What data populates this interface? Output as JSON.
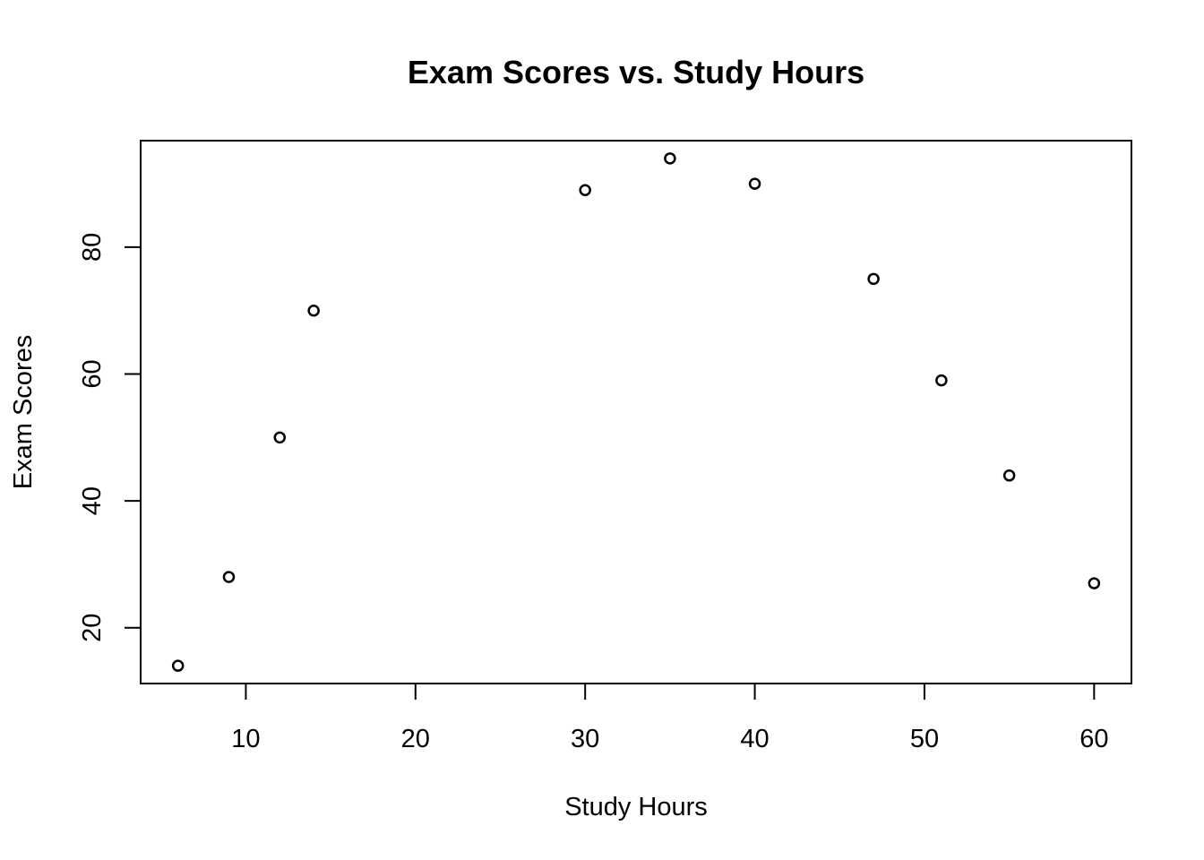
{
  "chart_data": {
    "type": "scatter",
    "title": "Exam Scores vs. Study Hours",
    "xlabel": "Study Hours",
    "ylabel": "Exam Scores",
    "xlim": [
      3.8,
      62.2
    ],
    "ylim": [
      11.2,
      96.8
    ],
    "x_ticks": [
      10,
      20,
      30,
      40,
      50,
      60
    ],
    "y_ticks": [
      20,
      40,
      60,
      80
    ],
    "grid": false,
    "legend": "none",
    "marker": "open-circle",
    "color": "#000000",
    "points": [
      {
        "x": 6,
        "y": 14
      },
      {
        "x": 9,
        "y": 28
      },
      {
        "x": 12,
        "y": 50
      },
      {
        "x": 14,
        "y": 70
      },
      {
        "x": 30,
        "y": 89
      },
      {
        "x": 35,
        "y": 94
      },
      {
        "x": 40,
        "y": 90
      },
      {
        "x": 47,
        "y": 75
      },
      {
        "x": 51,
        "y": 59
      },
      {
        "x": 55,
        "y": 44
      },
      {
        "x": 60,
        "y": 27
      }
    ]
  }
}
